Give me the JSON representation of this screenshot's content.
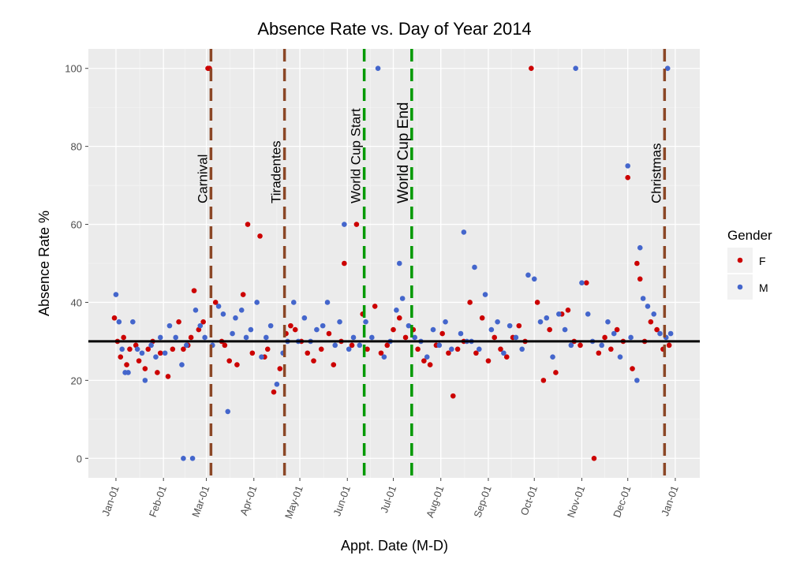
{
  "chart_data": {
    "type": "scatter",
    "title": "Absence Rate vs. Day of Year 2014",
    "x_label": "Appt. Date (M-D)",
    "y_label": "Absence Rate %",
    "xlim": [
      -17,
      382
    ],
    "ylim": [
      -5,
      105
    ],
    "xticks": [
      {
        "value": 1,
        "label": "Jan-01"
      },
      {
        "value": 32,
        "label": "Feb-01"
      },
      {
        "value": 60,
        "label": "Mar-01"
      },
      {
        "value": 91,
        "label": "Apr-01"
      },
      {
        "value": 121,
        "label": "May-01"
      },
      {
        "value": 152,
        "label": "Jun-01"
      },
      {
        "value": 182,
        "label": "Jul-01"
      },
      {
        "value": 213,
        "label": "Aug-01"
      },
      {
        "value": 244,
        "label": "Sep-01"
      },
      {
        "value": 274,
        "label": "Oct-01"
      },
      {
        "value": 305,
        "label": "Nov-01"
      },
      {
        "value": 335,
        "label": "Dec-01"
      },
      {
        "value": 366,
        "label": "Jan-01"
      }
    ],
    "yticks": [
      0,
      20,
      40,
      60,
      80,
      100
    ],
    "grid": true,
    "legend_title": "Gender",
    "legend_position": "right",
    "hline": {
      "y": 30,
      "color": "#000000"
    },
    "vlines": [
      {
        "x": 63,
        "label": "Carnival",
        "color": "#8b4726"
      },
      {
        "x": 111,
        "label": "Tiradentes",
        "color": "#8b4726"
      },
      {
        "x": 163,
        "label": "World Cup Start",
        "color": "#009900"
      },
      {
        "x": 194,
        "label": "World Cup End",
        "color": "#009900"
      },
      {
        "x": 359,
        "label": "Christmas",
        "color": "#8b4726"
      }
    ],
    "series": [
      {
        "name": "F",
        "color": "#cc0000",
        "x": [
          0,
          2,
          4,
          6,
          8,
          10,
          14,
          16,
          20,
          22,
          25,
          28,
          30,
          35,
          38,
          42,
          45,
          48,
          50,
          52,
          55,
          58,
          61,
          62,
          66,
          70,
          72,
          75,
          80,
          84,
          87,
          90,
          95,
          98,
          100,
          104,
          108,
          112,
          115,
          118,
          122,
          126,
          130,
          135,
          140,
          143,
          148,
          150,
          155,
          158,
          162,
          165,
          170,
          174,
          178,
          182,
          186,
          190,
          195,
          198,
          202,
          206,
          210,
          214,
          218,
          221,
          224,
          228,
          232,
          236,
          240,
          244,
          248,
          252,
          256,
          260,
          264,
          268,
          272,
          276,
          280,
          284,
          288,
          292,
          296,
          300,
          304,
          308,
          313,
          316,
          320,
          324,
          328,
          332,
          335,
          338,
          341,
          343,
          346,
          350,
          354,
          358,
          362
        ],
        "values": [
          36,
          30,
          26,
          31,
          24,
          28,
          29,
          25,
          23,
          28,
          30,
          22,
          27,
          21,
          28,
          35,
          28,
          29,
          31,
          43,
          33,
          35,
          100,
          100,
          40,
          30,
          29,
          25,
          24,
          42,
          60,
          27,
          57,
          26,
          28,
          17,
          23,
          32,
          34,
          33,
          30,
          27,
          25,
          28,
          32,
          24,
          30,
          50,
          29,
          60,
          37,
          28,
          39,
          27,
          29,
          33,
          36,
          31,
          33,
          28,
          25,
          24,
          29,
          32,
          27,
          16,
          28,
          30,
          40,
          27,
          36,
          25,
          31,
          28,
          26,
          31,
          34,
          30,
          100,
          40,
          20,
          33,
          22,
          37,
          38,
          30,
          29,
          45,
          0,
          27,
          31,
          28,
          33,
          30,
          72,
          23,
          50,
          46,
          30,
          35,
          33,
          28,
          29
        ]
      },
      {
        "name": "M",
        "color": "#4466cc",
        "x": [
          1,
          3,
          5,
          7,
          9,
          12,
          15,
          18,
          20,
          24,
          27,
          30,
          33,
          36,
          40,
          44,
          45,
          47,
          51,
          53,
          56,
          59,
          64,
          68,
          71,
          74,
          77,
          79,
          83,
          86,
          89,
          93,
          96,
          99,
          102,
          106,
          110,
          113,
          117,
          120,
          124,
          128,
          132,
          136,
          139,
          144,
          147,
          150,
          153,
          156,
          160,
          164,
          168,
          172,
          176,
          180,
          184,
          186,
          188,
          192,
          196,
          200,
          204,
          208,
          212,
          216,
          220,
          226,
          228,
          230,
          233,
          235,
          238,
          242,
          246,
          250,
          254,
          258,
          262,
          266,
          270,
          274,
          278,
          282,
          286,
          290,
          294,
          298,
          301,
          305,
          309,
          312,
          318,
          322,
          326,
          330,
          335,
          337,
          341,
          343,
          345,
          348,
          352,
          356,
          360,
          361,
          363
        ],
        "values": [
          42,
          35,
          28,
          22,
          22,
          35,
          28,
          27,
          20,
          29,
          26,
          31,
          27,
          34,
          31,
          24,
          0,
          29,
          0,
          38,
          34,
          31,
          29,
          39,
          37,
          12,
          32,
          36,
          38,
          31,
          33,
          40,
          26,
          31,
          34,
          19,
          27,
          30,
          40,
          30,
          36,
          30,
          33,
          34,
          40,
          29,
          35,
          60,
          28,
          31,
          29,
          35,
          31,
          100,
          26,
          30,
          38,
          50,
          41,
          34,
          31,
          30,
          26,
          33,
          29,
          35,
          28,
          32,
          58,
          30,
          30,
          49,
          28,
          42,
          33,
          35,
          27,
          34,
          31,
          28,
          47,
          46,
          35,
          36,
          26,
          37,
          33,
          29,
          100,
          45,
          37,
          30,
          29,
          35,
          32,
          26,
          75,
          31,
          20,
          54,
          41,
          39,
          37,
          32,
          31,
          100,
          32
        ]
      }
    ]
  }
}
